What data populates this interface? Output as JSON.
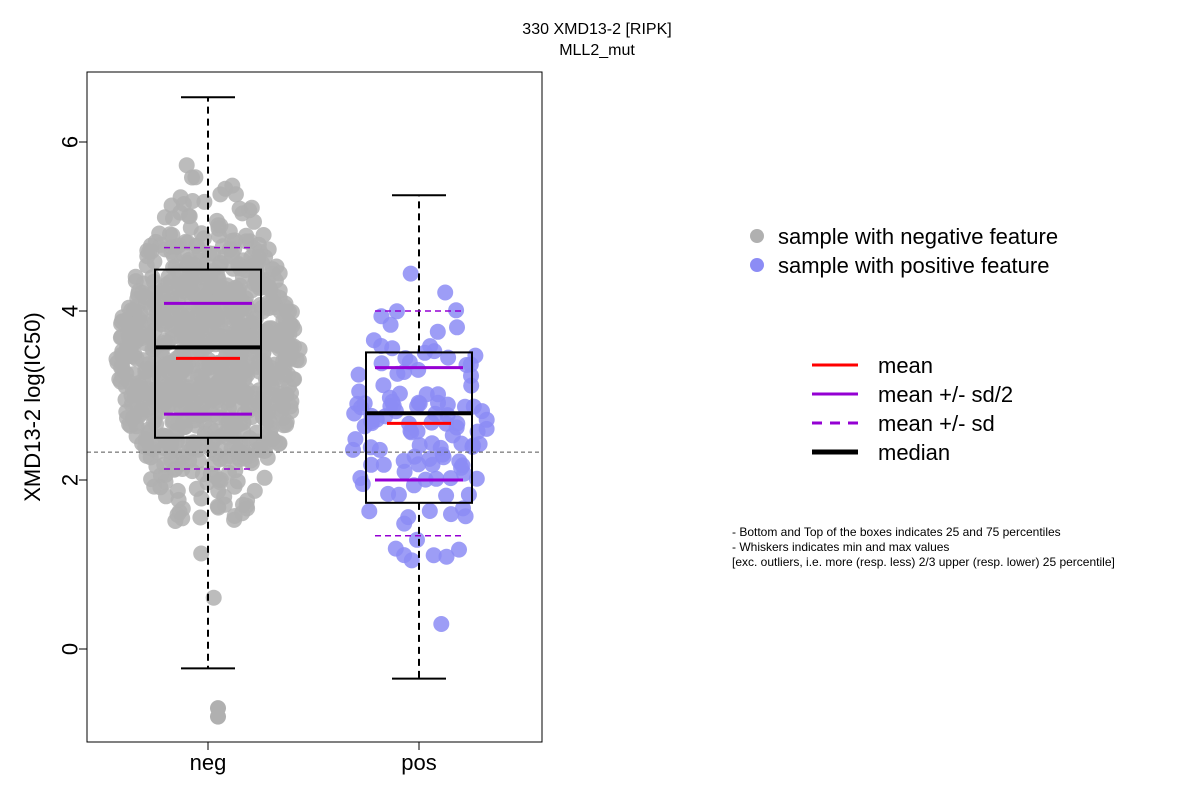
{
  "chart_data": {
    "type": "scatter",
    "title": "330 XMD13-2 [RIPK]",
    "subtitle": "MLL2_mut",
    "xlabel": "",
    "ylabel": "XMD13-2 log(IC50)",
    "ylim": [
      -1.1,
      6.7
    ],
    "yticks": [
      "0",
      "2",
      "4",
      "6"
    ],
    "categories": [
      "neg",
      "pos"
    ],
    "reference_line_y": 2.33,
    "groups": [
      {
        "name": "neg",
        "color": "#b0b0b0",
        "n_points": 950,
        "box": {
          "q1": 2.5,
          "median": 3.57,
          "q3": 4.49,
          "whisker_low": -0.23,
          "whisker_high": 6.53
        },
        "mean": 3.44,
        "mean_minus_half_sd": 2.78,
        "mean_plus_half_sd": 4.09,
        "mean_minus_sd": 2.13,
        "mean_plus_sd": 4.75,
        "outliers": [
          -0.7,
          -0.8
        ]
      },
      {
        "name": "pos",
        "color": "#8c8cf5",
        "n_points": 120,
        "box": {
          "q1": 1.73,
          "median": 2.79,
          "q3": 3.51,
          "whisker_low": -0.35,
          "whisker_high": 5.37
        },
        "mean": 2.67,
        "mean_minus_half_sd": 2.0,
        "mean_plus_half_sd": 3.33,
        "mean_minus_sd": 1.34,
        "mean_plus_sd": 4.0,
        "outliers": []
      }
    ],
    "legend_points": [
      {
        "label": "sample with negative feature",
        "color": "#b0b0b0"
      },
      {
        "label": "sample with positive feature",
        "color": "#8c8cf5"
      }
    ],
    "legend_lines": [
      {
        "label": "mean",
        "color": "#ff0000",
        "style": "solid"
      },
      {
        "label": "mean +/- sd/2",
        "color": "#9400d3",
        "style": "solid"
      },
      {
        "label": "mean +/- sd",
        "color": "#9400d3",
        "style": "dashed"
      },
      {
        "label": "median",
        "color": "#000000",
        "style": "solid-thick"
      }
    ],
    "notes": [
      "- Bottom and Top of the boxes indicates 25 and 75 percentiles",
      "- Whiskers indicates min and max values",
      "[exc. outliers, i.e. more (resp. less) 2/3 upper (resp. lower) 25 percentile]"
    ]
  }
}
